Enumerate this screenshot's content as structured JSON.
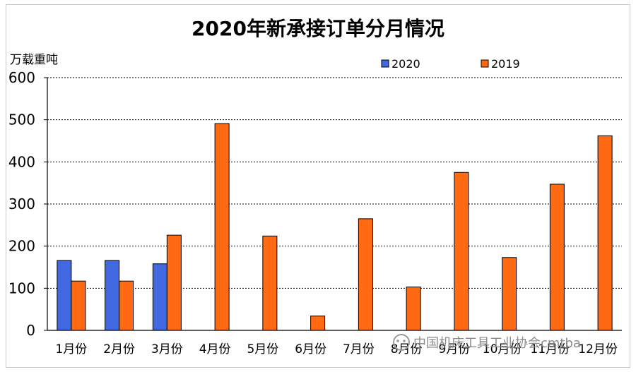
{
  "chart_data": {
    "type": "bar",
    "title": "2020年新承接订单分月情况",
    "ylabel": "万载重吨",
    "xlabel": "",
    "ylim": [
      0,
      600
    ],
    "yticks": [
      0,
      100,
      200,
      300,
      400,
      500,
      600
    ],
    "grid": true,
    "legend_position": "top-right",
    "categories": [
      "1月份",
      "2月份",
      "3月份",
      "4月份",
      "5月份",
      "6月份",
      "7月份",
      "8月份",
      "9月份",
      "10月份",
      "11月份",
      "12月份"
    ],
    "series": [
      {
        "name": "2020",
        "color": "#4169e1",
        "values": [
          166,
          166,
          158,
          null,
          null,
          null,
          null,
          null,
          null,
          null,
          null,
          null
        ]
      },
      {
        "name": "2019",
        "color": "#ff6a13",
        "values": [
          117,
          117,
          226,
          491,
          224,
          34,
          265,
          103,
          375,
          173,
          347,
          462
        ]
      }
    ]
  },
  "watermark": {
    "text": "中国机床工具工业协会cmtba"
  }
}
